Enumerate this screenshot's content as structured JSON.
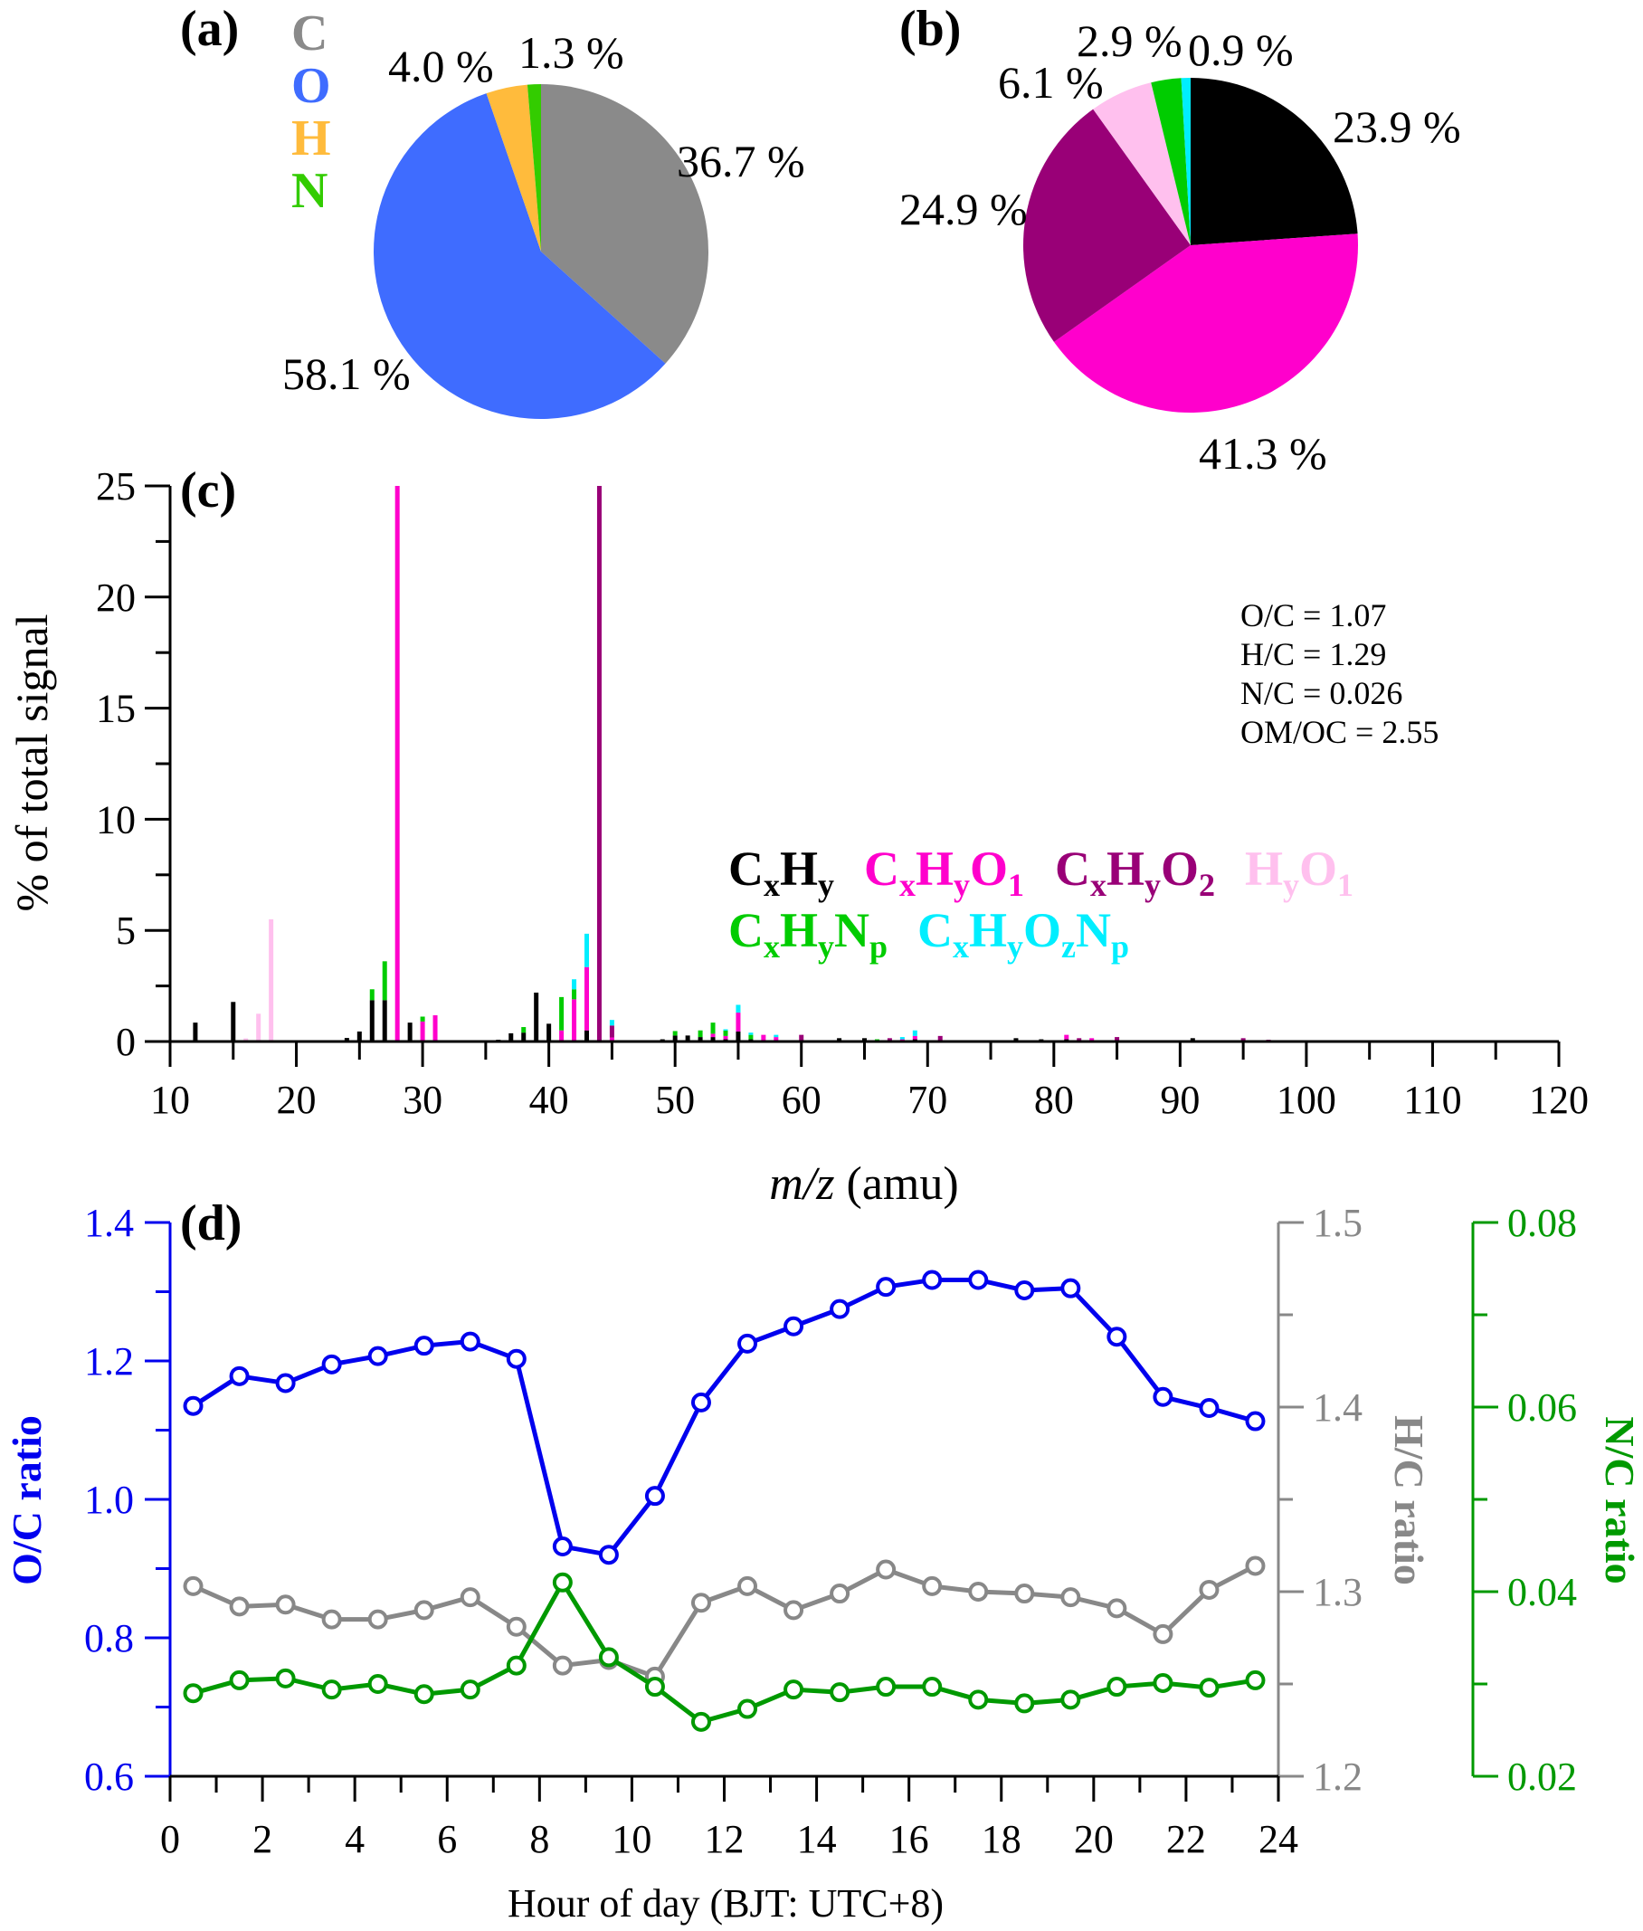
{
  "chart_data": [
    {
      "panel": "(a)",
      "type": "pie",
      "legend": [
        {
          "label": "C",
          "color": "#8a8a8a"
        },
        {
          "label": "O",
          "color": "#3f6cff"
        },
        {
          "label": "H",
          "color": "#ffbb3c"
        },
        {
          "label": "N",
          "color": "#33cc00"
        }
      ],
      "slices": [
        {
          "name": "C",
          "value": 36.7,
          "label": "36.7 %",
          "color": "#8a8a8a"
        },
        {
          "name": "O",
          "value": 58.1,
          "label": "58.1 %",
          "color": "#3f6cff"
        },
        {
          "name": "H",
          "value": 4.0,
          "label": "4.0 %",
          "color": "#ffbb3c"
        },
        {
          "name": "N",
          "value": 1.3,
          "label": "1.3 %",
          "color": "#33cc00"
        }
      ]
    },
    {
      "panel": "(b)",
      "type": "pie",
      "slices": [
        {
          "name": "CxHy",
          "value": 23.9,
          "label": "23.9 %",
          "color": "#000000"
        },
        {
          "name": "CxHyO1",
          "value": 41.3,
          "label": "41.3 %",
          "color": "#ff00cc"
        },
        {
          "name": "CxHyO2",
          "value": 24.9,
          "label": "24.9 %",
          "color": "#990077"
        },
        {
          "name": "HyO1",
          "value": 6.1,
          "label": "6.1 %",
          "color": "#ffc0ee"
        },
        {
          "name": "CxHyNp",
          "value": 2.9,
          "label": "2.9 %",
          "color": "#00cc00"
        },
        {
          "name": "CxHyOzNp",
          "value": 0.9,
          "label": "0.9 %",
          "color": "#00eeff"
        }
      ]
    },
    {
      "panel": "(c)",
      "type": "bar",
      "stacked": true,
      "xlabel_italic": "m/z",
      "xlabel_rest": " (amu)",
      "ylabel": "% of total signal",
      "xlim": [
        10,
        120
      ],
      "ylim": [
        0,
        25
      ],
      "xticks": [
        10,
        20,
        30,
        40,
        50,
        60,
        70,
        80,
        90,
        100,
        110,
        120
      ],
      "yticks": [
        0,
        5,
        10,
        15,
        20,
        25
      ],
      "series_order": [
        "CxHy",
        "CxHyO1",
        "CxHyO2",
        "HyO1",
        "CxHyNp",
        "CxHyOzNp"
      ],
      "colors": {
        "CxHy": "#000000",
        "CxHyO1": "#ff00cc",
        "CxHyO2": "#990077",
        "HyO1": "#ffc0ee",
        "CxHyNp": "#00cc00",
        "CxHyOzNp": "#00eeff"
      },
      "legend": [
        {
          "series": "CxHy",
          "parts": [
            [
              "C",
              ""
            ],
            [
              "x",
              "sub"
            ],
            [
              "H",
              ""
            ],
            [
              "y",
              "sub"
            ]
          ]
        },
        {
          "series": "CxHyO1",
          "parts": [
            [
              "C",
              ""
            ],
            [
              "x",
              "sub"
            ],
            [
              "H",
              ""
            ],
            [
              "y",
              "sub"
            ],
            [
              "O",
              ""
            ],
            [
              "1",
              "sub"
            ]
          ]
        },
        {
          "series": "CxHyO2",
          "parts": [
            [
              "C",
              ""
            ],
            [
              "x",
              "sub"
            ],
            [
              "H",
              ""
            ],
            [
              "y",
              "sub"
            ],
            [
              "O",
              ""
            ],
            [
              "2",
              "sub"
            ]
          ]
        },
        {
          "series": "HyO1",
          "parts": [
            [
              "H",
              ""
            ],
            [
              "y",
              "sub"
            ],
            [
              "O",
              ""
            ],
            [
              "1",
              "sub"
            ]
          ]
        },
        {
          "series": "CxHyNp",
          "parts": [
            [
              "C",
              ""
            ],
            [
              "x",
              "sub"
            ],
            [
              "H",
              ""
            ],
            [
              "y",
              "sub"
            ],
            [
              "N",
              ""
            ],
            [
              "p",
              "sub"
            ]
          ]
        },
        {
          "series": "CxHyOzNp",
          "parts": [
            [
              "C",
              ""
            ],
            [
              "x",
              "sub"
            ],
            [
              "H",
              ""
            ],
            [
              "y",
              "sub"
            ],
            [
              "O",
              ""
            ],
            [
              "z",
              "sub"
            ],
            [
              "N",
              ""
            ],
            [
              "p",
              "sub"
            ]
          ]
        }
      ],
      "annotations": [
        "O/C = 1.07",
        "H/C = 1.29",
        "N/C = 0.026",
        "OM/OC = 2.55"
      ],
      "bars": [
        {
          "mz": 12,
          "CxHy": 0.85
        },
        {
          "mz": 15,
          "CxHy": 1.78
        },
        {
          "mz": 16,
          "HyO1": 0.14
        },
        {
          "mz": 17,
          "HyO1": 1.25
        },
        {
          "mz": 18,
          "HyO1": 5.5
        },
        {
          "mz": 24,
          "CxHy": 0.16
        },
        {
          "mz": 25,
          "CxHy": 0.45
        },
        {
          "mz": 26,
          "CxHy": 1.86,
          "CxHyNp": 0.49
        },
        {
          "mz": 27,
          "CxHy": 1.86,
          "CxHyNp": 1.75
        },
        {
          "mz": 28,
          "CxHyO1": 25
        },
        {
          "mz": 29,
          "CxHy": 0.85
        },
        {
          "mz": 30,
          "CxHyO1": 0.9,
          "CxHyNp": 0.22
        },
        {
          "mz": 31,
          "CxHyO1": 1.18
        },
        {
          "mz": 36,
          "CxHy": 0.08
        },
        {
          "mz": 37,
          "CxHy": 0.37
        },
        {
          "mz": 38,
          "CxHy": 0.4,
          "CxHyNp": 0.25
        },
        {
          "mz": 39,
          "CxHy": 2.2
        },
        {
          "mz": 40,
          "CxHy": 0.8
        },
        {
          "mz": 41,
          "CxHyO1": 0.5,
          "CxHyNp": 1.5
        },
        {
          "mz": 42,
          "CxHyO1": 1.9,
          "CxHyNp": 0.45,
          "CxHyOzNp": 0.45
        },
        {
          "mz": 43,
          "CxHy": 0.5,
          "CxHyO1": 2.85,
          "CxHyOzNp": 1.5
        },
        {
          "mz": 44,
          "CxHyO2": 25
        },
        {
          "mz": 45,
          "CxHyO1": 0.18,
          "CxHyO2": 0.54,
          "CxHyOzNp": 0.25
        },
        {
          "mz": 46,
          "CxHyOzNp": 0.04
        },
        {
          "mz": 47,
          "CxHyO2": 0.06
        },
        {
          "mz": 49,
          "CxHy": 0.1
        },
        {
          "mz": 50,
          "CxHy": 0.27,
          "CxHyNp": 0.2
        },
        {
          "mz": 51,
          "CxHy": 0.27
        },
        {
          "mz": 52,
          "CxHy": 0.2,
          "CxHyNp": 0.3
        },
        {
          "mz": 53,
          "CxHy": 0.2,
          "CxHyO1": 0.15,
          "CxHyNp": 0.5
        },
        {
          "mz": 54,
          "CxHy": 0.1,
          "CxHyO1": 0.15,
          "CxHyNp": 0.25,
          "CxHyOzNp": 0.05
        },
        {
          "mz": 55,
          "CxHy": 0.45,
          "CxHyO1": 0.85,
          "CxHyOzNp": 0.35
        },
        {
          "mz": 56,
          "CxHy": 0.1,
          "CxHyNp": 0.2,
          "CxHyOzNp": 0.1
        },
        {
          "mz": 57,
          "CxHyO1": 0.3
        },
        {
          "mz": 58,
          "CxHyO1": 0.2,
          "CxHyOzNp": 0.1
        },
        {
          "mz": 60,
          "CxHyO2": 0.3
        },
        {
          "mz": 61,
          "CxHyO2": 0.05
        },
        {
          "mz": 63,
          "CxHy": 0.15
        },
        {
          "mz": 65,
          "CxHy": 0.15
        },
        {
          "mz": 66,
          "CxHyNp": 0.1
        },
        {
          "mz": 67,
          "CxHyO2": 0.15
        },
        {
          "mz": 68,
          "CxHyO1": 0.1,
          "CxHyOzNp": 0.1
        },
        {
          "mz": 69,
          "CxHy": 0.1,
          "CxHyO1": 0.15,
          "CxHyOzNp": 0.25
        },
        {
          "mz": 70,
          "CxHyO1": 0.05
        },
        {
          "mz": 71,
          "CxHyO2": 0.25
        },
        {
          "mz": 73,
          "CxHyNp": 0.05
        },
        {
          "mz": 74,
          "CxHyO2": 0.05
        },
        {
          "mz": 77,
          "CxHy": 0.15
        },
        {
          "mz": 79,
          "CxHy": 0.1
        },
        {
          "mz": 81,
          "CxHy": 0.1,
          "CxHyO1": 0.2
        },
        {
          "mz": 82,
          "CxHyO2": 0.15
        },
        {
          "mz": 83,
          "CxHyO1": 0.15
        },
        {
          "mz": 84,
          "CxHyOzNp": 0.05
        },
        {
          "mz": 85,
          "CxHyO2": 0.2
        },
        {
          "mz": 87,
          "CxHyOzNp": 0.03
        },
        {
          "mz": 91,
          "CxHy": 0.15
        },
        {
          "mz": 95,
          "CxHyO2": 0.15
        },
        {
          "mz": 97,
          "CxHyO2": 0.08
        },
        {
          "mz": 99,
          "CxHyNp": 0.05
        },
        {
          "mz": 108,
          "CxHyOzNp": 0.03
        },
        {
          "mz": 109,
          "CxHyOzNp": 0.03
        },
        {
          "mz": 111,
          "CxHyO2": 0.05
        },
        {
          "mz": 113,
          "CxHyOzNp": 0.03
        },
        {
          "mz": 118,
          "CxHyNp": 0.03
        }
      ]
    },
    {
      "panel": "(d)",
      "type": "line",
      "xlabel": "Hour of day (BJT: UTC+8)",
      "xlim": [
        0,
        24
      ],
      "xticks": [
        0,
        2,
        4,
        6,
        8,
        10,
        12,
        14,
        16,
        18,
        20,
        22,
        24
      ],
      "x": [
        0.5,
        1.5,
        2.5,
        3.5,
        4.5,
        5.5,
        6.5,
        7.5,
        8.5,
        9.5,
        10.5,
        11.5,
        12.5,
        13.5,
        14.5,
        15.5,
        16.5,
        17.5,
        18.5,
        19.5,
        20.5,
        21.5,
        22.5,
        23.5
      ],
      "series": [
        {
          "name": "O/C ratio",
          "axis": "left",
          "color": "#0000ee",
          "ylim": [
            0.6,
            1.4
          ],
          "yticks": [
            "0.6",
            "0.8",
            "1.0",
            "1.2",
            "1.4"
          ],
          "values": [
            1.135,
            1.178,
            1.168,
            1.195,
            1.207,
            1.222,
            1.228,
            1.203,
            0.932,
            0.92,
            1.005,
            1.14,
            1.225,
            1.25,
            1.275,
            1.307,
            1.317,
            1.317,
            1.302,
            1.305,
            1.235,
            1.148,
            1.132,
            1.113
          ]
        },
        {
          "name": "H/C ratio",
          "axis": "right1",
          "color": "#888888",
          "ylim": [
            1.2,
            1.5
          ],
          "yticks": [
            "1.2",
            "1.3",
            "1.4",
            "1.5"
          ],
          "values": [
            1.303,
            1.292,
            1.293,
            1.285,
            1.285,
            1.29,
            1.297,
            1.281,
            1.26,
            1.263,
            1.254,
            1.294,
            1.303,
            1.29,
            1.299,
            1.312,
            1.303,
            1.3,
            1.299,
            1.297,
            1.291,
            1.277,
            1.301,
            1.314
          ]
        },
        {
          "name": "N/C ratio",
          "axis": "right2",
          "color": "#009900",
          "ylim": [
            0.02,
            0.08
          ],
          "yticks": [
            "0.02",
            "0.04",
            "0.06",
            "0.08"
          ],
          "values": [
            0.029,
            0.0304,
            0.0306,
            0.0294,
            0.03,
            0.0289,
            0.0294,
            0.032,
            0.041,
            0.0329,
            0.0297,
            0.0259,
            0.0273,
            0.0294,
            0.0291,
            0.0297,
            0.0297,
            0.0283,
            0.0279,
            0.0283,
            0.0297,
            0.0301,
            0.0296,
            0.0304
          ]
        }
      ]
    }
  ]
}
